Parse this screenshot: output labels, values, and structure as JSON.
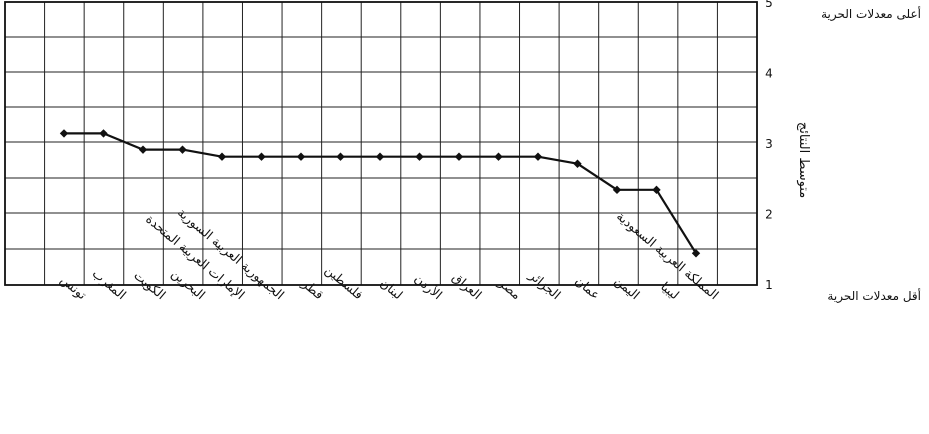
{
  "chart_data": {
    "type": "line",
    "title": "",
    "xlabel": "",
    "ylabel": "متوسط النتائج",
    "ylim": [
      1,
      5
    ],
    "y_ticks": [
      "1",
      "2",
      "3",
      "4",
      "5"
    ],
    "y_axis_side": "right",
    "grid": true,
    "legend": "none",
    "annotations": {
      "top": "أعلى معدلات الحرية",
      "bottom": "أقل معدلات الحرية"
    },
    "categories": [
      "تونس",
      "المغرب",
      "الكويت",
      "البحرين",
      "الإمارات العربية المتحدة",
      "الجمهورية العربية السورية",
      "قطر",
      "فلسطين",
      "لبنان",
      "الأردن",
      "العراق",
      "مصر",
      "الجزائر",
      "عمان",
      "اليمن",
      "ليبيا",
      "المملكة العربية السعودية"
    ],
    "series": [
      {
        "values": [
          3.15,
          3.15,
          2.92,
          2.92,
          2.82,
          2.82,
          2.82,
          2.82,
          2.82,
          2.82,
          2.82,
          2.82,
          2.82,
          2.72,
          2.35,
          2.35,
          1.45
        ],
        "color": "#111111"
      }
    ]
  }
}
